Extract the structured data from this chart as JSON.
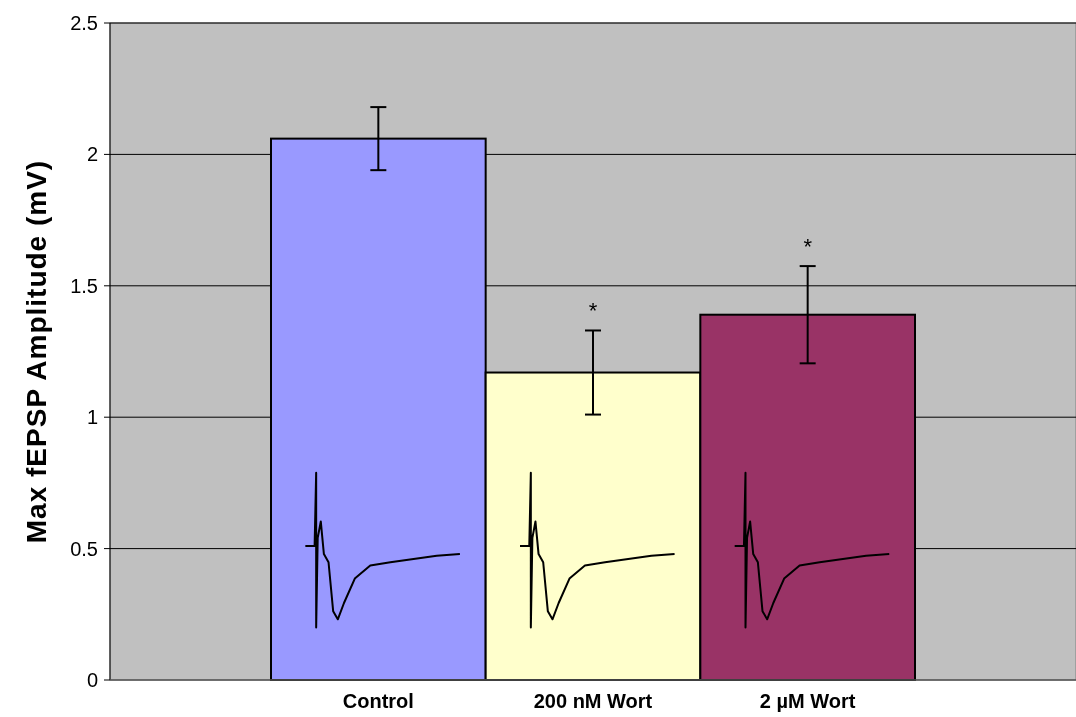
{
  "chart_data": {
    "type": "bar",
    "ylabel": "Max fEPSP Amplitude (mV)",
    "categories": [
      "Control",
      "200 nM Wort",
      "2 µM Wort"
    ],
    "values": [
      2.06,
      1.17,
      1.39
    ],
    "colors": [
      "#9999ff",
      "#ffffcc",
      "#993366"
    ],
    "errors": [
      0.12,
      0.16,
      0.185
    ],
    "ylim": [
      0,
      2.5
    ],
    "yticks": [
      0,
      0.5,
      1,
      1.5,
      2,
      2.5
    ],
    "grid": "y",
    "annotations": [
      {
        "text": "*",
        "x": "200 nM Wort",
        "y": 1.33
      },
      {
        "text": "*",
        "x": "2 µM Wort",
        "y": 1.575
      }
    ]
  }
}
